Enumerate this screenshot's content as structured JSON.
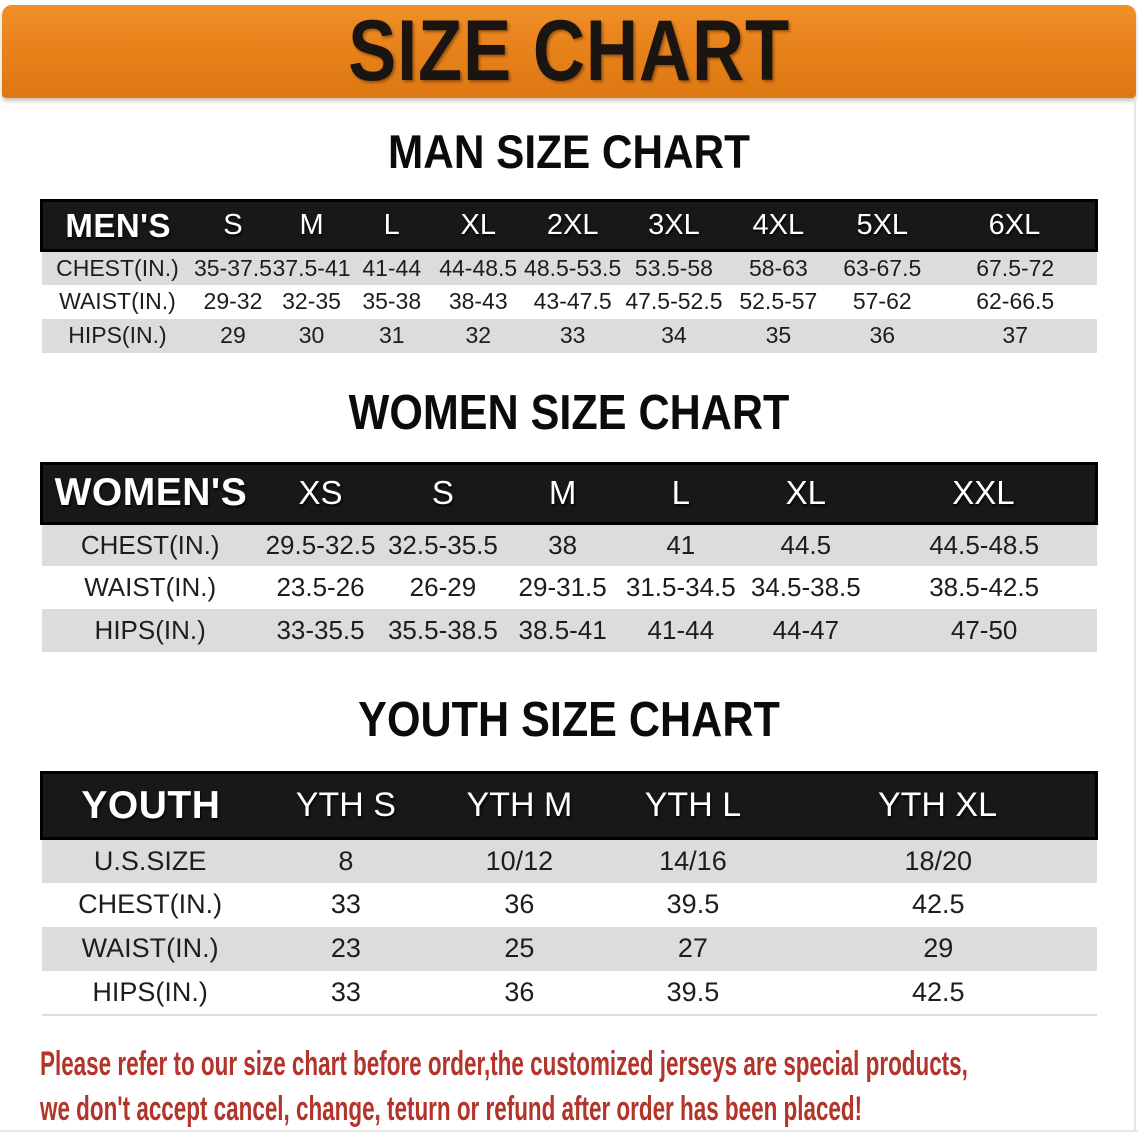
{
  "banner": {
    "title": "SIZE CHART"
  },
  "chart_data": [
    {
      "type": "table",
      "title": "MAN SIZE CHART",
      "header_label": "MEN'S",
      "columns": [
        "S",
        "M",
        "L",
        "XL",
        "2XL",
        "3XL",
        "4XL",
        "5XL",
        "6XL"
      ],
      "rows": [
        {
          "label": "CHEST(IN.)",
          "values": [
            "35-37.5",
            "37.5-41",
            "41-44",
            "44-48.5",
            "48.5-53.5",
            "53.5-58",
            "58-63",
            "63-67.5",
            "67.5-72"
          ]
        },
        {
          "label": "WAIST(IN.)",
          "values": [
            "29-32",
            "32-35",
            "35-38",
            "38-43",
            "43-47.5",
            "47.5-52.5",
            "52.5-57",
            "57-62",
            "62-66.5"
          ]
        },
        {
          "label": "HIPS(IN.)",
          "values": [
            "29",
            "30",
            "31",
            "32",
            "33",
            "34",
            "35",
            "36",
            "37"
          ]
        }
      ]
    },
    {
      "type": "table",
      "title": "WOMEN SIZE CHART",
      "header_label": "WOMEN'S",
      "columns": [
        "XS",
        "S",
        "M",
        "L",
        "XL",
        "XXL"
      ],
      "rows": [
        {
          "label": "CHEST(IN.)",
          "values": [
            "29.5-32.5",
            "32.5-35.5",
            "38",
            "41",
            "44.5",
            "44.5-48.5"
          ]
        },
        {
          "label": "WAIST(IN.)",
          "values": [
            "23.5-26",
            "26-29",
            "29-31.5",
            "31.5-34.5",
            "34.5-38.5",
            "38.5-42.5"
          ]
        },
        {
          "label": "HIPS(IN.)",
          "values": [
            "33-35.5",
            "35.5-38.5",
            "38.5-41",
            "41-44",
            "44-47",
            "47-50"
          ]
        }
      ]
    },
    {
      "type": "table",
      "title": "YOUTH SIZE CHART",
      "header_label": "YOUTH",
      "columns": [
        "YTH S",
        "YTH M",
        "YTH L",
        "YTH XL"
      ],
      "rows": [
        {
          "label": "U.S.SIZE",
          "values": [
            "8",
            "10/12",
            "14/16",
            "18/20"
          ]
        },
        {
          "label": "CHEST(IN.)",
          "values": [
            "33",
            "36",
            "39.5",
            "42.5"
          ]
        },
        {
          "label": "WAIST(IN.)",
          "values": [
            "23",
            "25",
            "27",
            "29"
          ]
        },
        {
          "label": "HIPS(IN.)",
          "values": [
            "33",
            "36",
            "39.5",
            "42.5"
          ]
        }
      ]
    }
  ],
  "disclaimer": {
    "line1": "Please refer to our size chart before order,the customized jerseys are special products,",
    "line2": "we don't accept cancel, change, teturn or refund after order has been placed!"
  },
  "colors": {
    "banner_bg": "#E8821B",
    "banner_hi": "#F19029",
    "banner_lo": "#DD7812",
    "header_bg": "#181818",
    "row_gray": "#DCDCDC",
    "disclaimer_red": "#B3342A"
  }
}
